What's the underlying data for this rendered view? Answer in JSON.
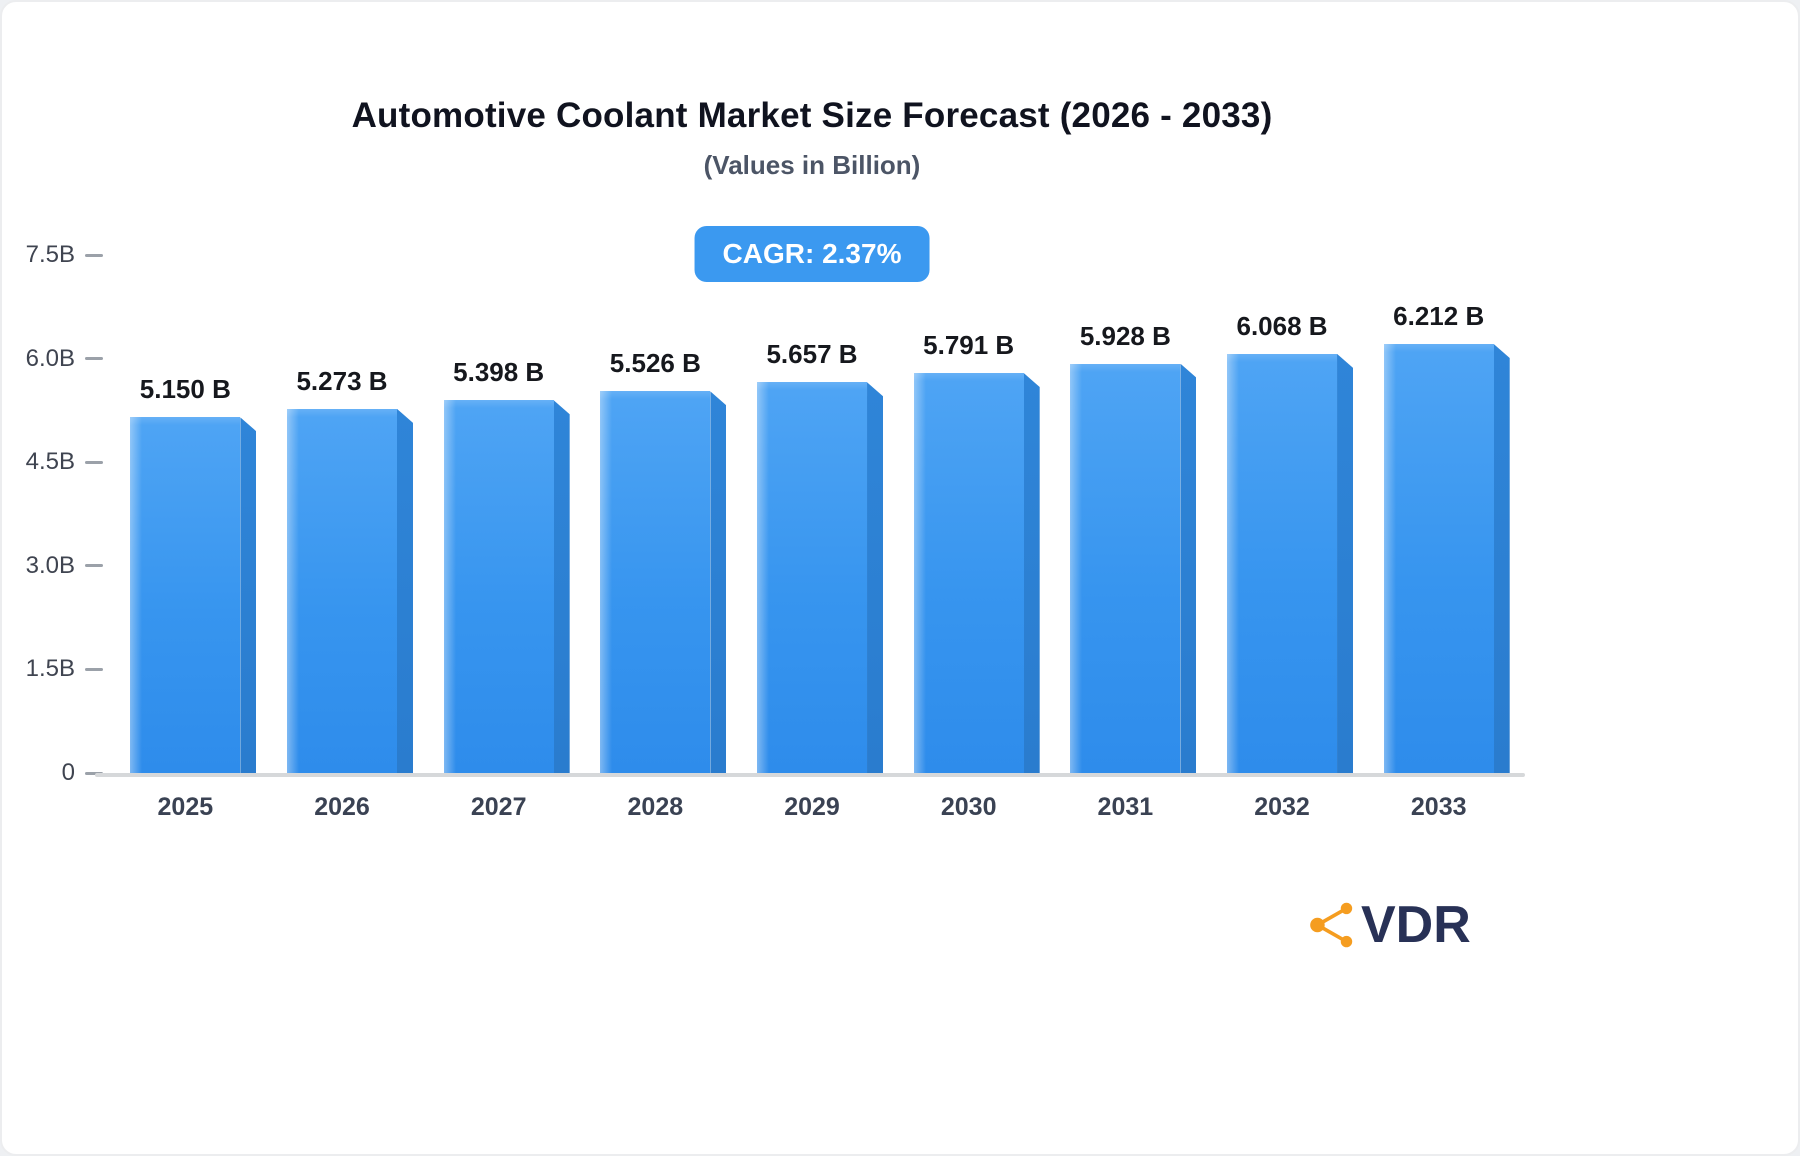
{
  "header": {
    "title": "Automotive Coolant Market Size Forecast (2026 - 2033)",
    "subtitle": "(Values in Billion)"
  },
  "badge": {
    "label": "CAGR: 2.37%"
  },
  "chart_data": {
    "type": "bar",
    "title": "Automotive Coolant Market Size Forecast (2026 - 2033)",
    "subtitle": "(Values in Billion)",
    "categories": [
      "2025",
      "2026",
      "2027",
      "2028",
      "2029",
      "2030",
      "2031",
      "2032",
      "2033"
    ],
    "values": [
      5.15,
      5.273,
      5.398,
      5.526,
      5.657,
      5.791,
      5.928,
      6.068,
      6.212
    ],
    "value_labels": [
      "5.150 B",
      "5.273 B",
      "5.398 B",
      "5.526 B",
      "5.657 B",
      "5.791 B",
      "5.928 B",
      "6.068 B",
      "6.212 B"
    ],
    "unit": "Billion",
    "ylim": [
      0,
      7.5
    ],
    "y_ticks": [
      {
        "value": 7.5,
        "label": "7.5B"
      },
      {
        "value": 6.0,
        "label": "6.0B"
      },
      {
        "value": 4.5,
        "label": "4.5B"
      },
      {
        "value": 3.0,
        "label": "3.0B"
      },
      {
        "value": 1.5,
        "label": "1.5B"
      },
      {
        "value": 0,
        "label": "0"
      }
    ],
    "grid": false,
    "legend": "none",
    "annotation": "CAGR: 2.37%",
    "bar_color": "#3b99f0",
    "bar_side_color": "#2a7cce"
  },
  "logo": {
    "text": "VDR",
    "icon_color": "#f59d20"
  },
  "colors": {
    "title": "#10131f",
    "subtitle": "#4c5566",
    "badge_bg": "#3b99f0",
    "badge_text": "#ffffff",
    "axis_text": "#3f4450",
    "baseline": "#d6d8da"
  }
}
